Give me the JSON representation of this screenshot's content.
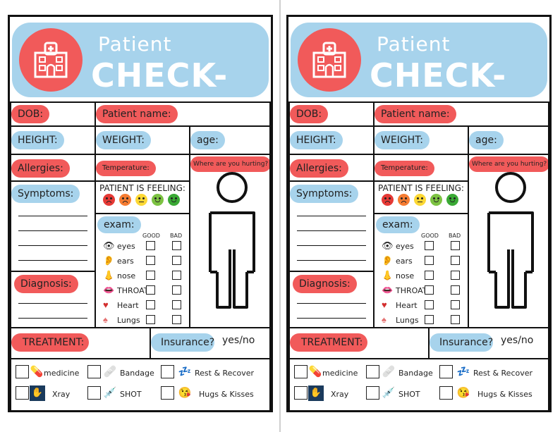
{
  "forms": [
    {
      "title_top": "Patient",
      "title_main": "CHECK-UP",
      "dob": "DOB:",
      "patient_name": "Patient name:",
      "height": "HEIGHT:",
      "weight": "WEIGHT:",
      "age": "age:",
      "allergies": "Allergies:",
      "temperature": "Temperature:",
      "hurting": "Where are you hurting?",
      "symptoms": "Symptoms:",
      "feeling": "PATIENT IS FEELING:",
      "exam": "exam:",
      "good": "GOOD",
      "bad": "BAD",
      "exam_items": [
        "eyes",
        "ears",
        "nose",
        "THROAT",
        "Heart",
        "Lungs"
      ],
      "diagnosis": "Diagnosis:",
      "treatment": "TREATMENT:",
      "insurance": "Insurance?",
      "yesno": "yes/no",
      "treatments": [
        "medicine",
        "Bandage",
        "Rest & Recover",
        "Xray",
        "SHOT",
        "Hugs & Kisses"
      ]
    },
    {
      "title_top": "Patient",
      "title_main": "CHECK-UP",
      "dob": "DOB:",
      "patient_name": "Patient name:",
      "height": "HEIGHT:",
      "weight": "WEIGHT:",
      "age": "age:",
      "allergies": "Allergies:",
      "temperature": "Temperature:",
      "hurting": "Where are you hurting?",
      "symptoms": "Symptoms:",
      "feeling": "PATIENT IS FEELING:",
      "exam": "exam:",
      "good": "GOOD",
      "bad": "BAD",
      "exam_items": [
        "eyes",
        "ears",
        "nose",
        "THROAT",
        "Heart",
        "Lungs"
      ],
      "diagnosis": "Diagnosis:",
      "treatment": "TREATMENT:",
      "insurance": "Insurance?",
      "yesno": "yes/no",
      "treatments": [
        "medicine",
        "Bandage",
        "Rest & Recover",
        "Xray",
        "SHOT",
        "Hugs & Kisses"
      ]
    }
  ],
  "colors": {
    "accent_red": "#f15a5a",
    "accent_blue": "#a7d3ec",
    "border": "#111111"
  },
  "exam_icons": [
    "eye-icon",
    "ear-icon",
    "nose-icon",
    "throat-icon",
    "heart-icon",
    "lungs-icon"
  ],
  "treatment_icons": [
    "medicine-icon",
    "bandage-icon",
    "rest-icon",
    "xray-icon",
    "shot-icon",
    "hugs-icon"
  ]
}
